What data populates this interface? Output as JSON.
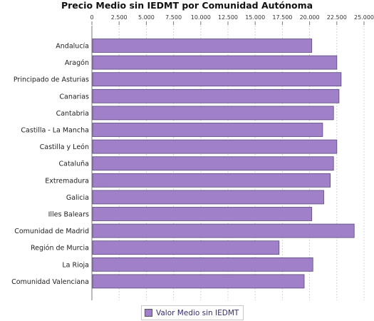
{
  "chart_data": {
    "type": "bar",
    "orientation": "horizontal",
    "title": "Precio Medio sin IEDMT por Comunidad Autónoma",
    "categories": [
      "Andalucía",
      "Aragón",
      "Principado de Asturias",
      "Canarias",
      "Cantabria",
      "Castilla - La Mancha",
      "Castilla y León",
      "Cataluña",
      "Extremadura",
      "Galicia",
      "Illes Balears",
      "Comunidad de Madrid",
      "Región de Murcia",
      "La Rioja",
      "Comunidad Valenciana"
    ],
    "series": [
      {
        "name": "Valor Medio sin IEDMT",
        "color": "#a080c8",
        "values": [
          20200,
          22500,
          22900,
          22700,
          22200,
          21200,
          22500,
          22200,
          21900,
          21300,
          20200,
          24100,
          17200,
          20300,
          19500
        ]
      }
    ],
    "xlim": [
      0,
      25000
    ],
    "ticks": [
      "0",
      "2.500",
      "5.000",
      "7.500",
      "10.000",
      "12.500",
      "15.000",
      "17.500",
      "20.000",
      "22.500",
      "25.000"
    ],
    "tick_values": [
      0,
      2500,
      5000,
      7500,
      10000,
      12500,
      15000,
      17500,
      20000,
      22500,
      25000
    ],
    "grid": true,
    "legend_position": "bottom"
  }
}
